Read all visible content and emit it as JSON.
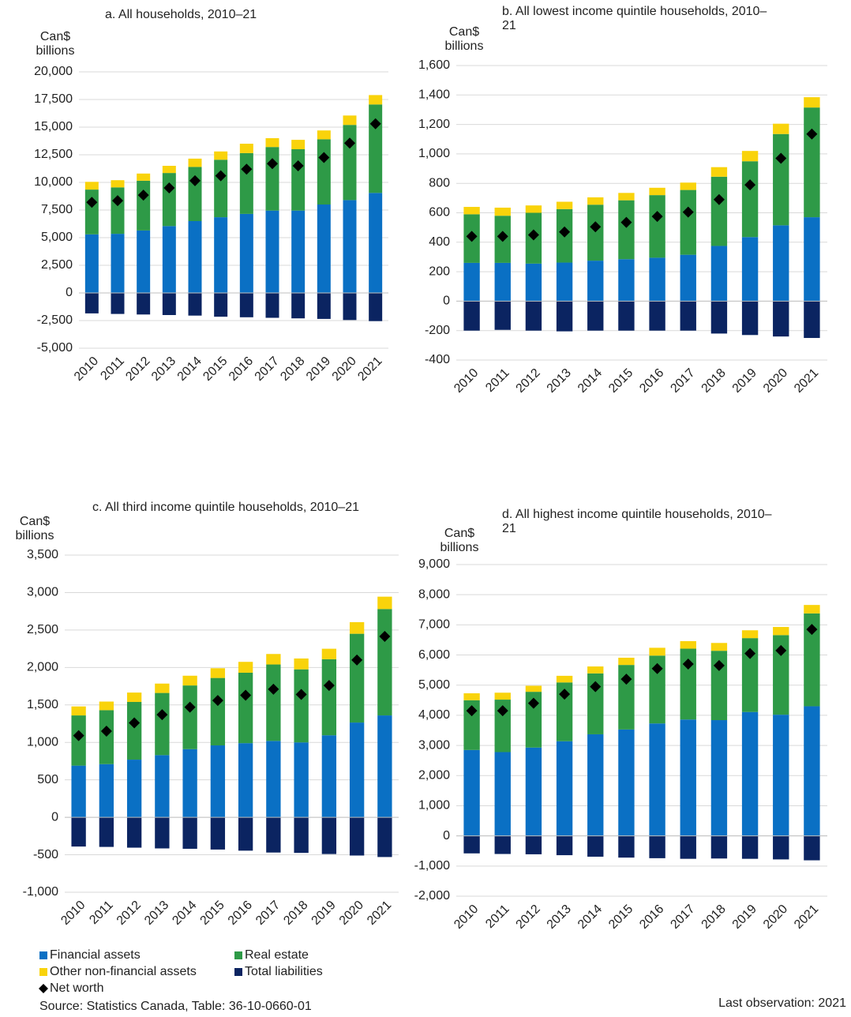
{
  "chart_data": [
    {
      "type": "bar",
      "title": "a. All households, 2010–21",
      "y_label": "Can$ billions",
      "categories": [
        "2010",
        "2011",
        "2012",
        "2013",
        "2014",
        "2015",
        "2016",
        "2017",
        "2018",
        "2019",
        "2020",
        "2021"
      ],
      "ylim": [
        -5000,
        20000
      ],
      "yticks": [
        {
          "value": -5000,
          "label": "-5,000"
        },
        {
          "value": -2500,
          "label": "-2,500"
        },
        0,
        {
          "value": 2500,
          "label": "2,500"
        },
        {
          "value": 5000,
          "label": "5,000"
        },
        {
          "value": 7500,
          "label": "7,500"
        },
        {
          "value": 10000,
          "label": "10,000"
        },
        {
          "value": 12500,
          "label": "12,500"
        },
        {
          "value": 15000,
          "label": "15,000"
        },
        {
          "value": 17500,
          "label": "17,500"
        },
        {
          "value": 20000,
          "label": "20,000"
        }
      ],
      "grid": true,
      "series": [
        {
          "name": "Financial assets",
          "color": "#0a70c4",
          "values": [
            5300,
            5350,
            5650,
            6050,
            6500,
            6850,
            7150,
            7450,
            7450,
            8000,
            8400,
            9050
          ]
        },
        {
          "name": "Real estate",
          "color": "#2e9a47",
          "values": [
            4050,
            4200,
            4500,
            4800,
            4900,
            5200,
            5500,
            5750,
            5550,
            5900,
            6800,
            8000
          ]
        },
        {
          "name": "Other non-financial assets",
          "color": "#f9d30b",
          "values": [
            700,
            650,
            650,
            650,
            750,
            750,
            850,
            800,
            850,
            800,
            850,
            850
          ]
        },
        {
          "name": "Total liabilities",
          "color": "#0b2461",
          "values": [
            -1850,
            -1900,
            -1950,
            -2000,
            -2050,
            -2150,
            -2200,
            -2250,
            -2300,
            -2350,
            -2450,
            -2550
          ]
        },
        {
          "name": "Net worth",
          "color": "#000000",
          "marker": "diamond",
          "values": [
            8200,
            8350,
            8850,
            9500,
            10150,
            10600,
            11200,
            11700,
            11500,
            12250,
            13550,
            15300
          ]
        }
      ]
    },
    {
      "type": "bar",
      "title": "b. All lowest income quintile households, 2010–21",
      "y_label": "Can$ billions",
      "categories": [
        "2010",
        "2011",
        "2012",
        "2013",
        "2014",
        "2015",
        "2016",
        "2017",
        "2018",
        "2019",
        "2020",
        "2021"
      ],
      "ylim": [
        -400,
        1600
      ],
      "yticks": [
        -400,
        -200,
        0,
        200,
        400,
        600,
        800,
        {
          "value": 1000,
          "label": "1,000"
        },
        {
          "value": 1200,
          "label": "1,200"
        },
        {
          "value": 1400,
          "label": "1,400"
        },
        {
          "value": 1600,
          "label": "1,600"
        }
      ],
      "grid": true,
      "series": [
        {
          "values": [
            260,
            260,
            255,
            262,
            275,
            285,
            295,
            315,
            375,
            435,
            515,
            570
          ]
        },
        {
          "values": [
            330,
            320,
            345,
            363,
            380,
            400,
            425,
            440,
            470,
            515,
            620,
            745
          ]
        },
        {
          "values": [
            50,
            55,
            50,
            50,
            50,
            50,
            50,
            50,
            65,
            70,
            70,
            70
          ]
        },
        {
          "values": [
            -200,
            -195,
            -200,
            -205,
            -200,
            -200,
            -200,
            -200,
            -220,
            -230,
            -240,
            -250
          ]
        },
        {
          "values": [
            440,
            440,
            450,
            470,
            505,
            535,
            575,
            605,
            690,
            790,
            970,
            1135
          ]
        }
      ]
    },
    {
      "type": "bar",
      "title": "c. All third income quintile households, 2010–21",
      "y_label": "Can$ billions",
      "categories": [
        "2010",
        "2011",
        "2012",
        "2013",
        "2014",
        "2015",
        "2016",
        "2017",
        "2018",
        "2019",
        "2020",
        "2021"
      ],
      "ylim": [
        -1000,
        3500
      ],
      "yticks": [
        {
          "value": -1000,
          "label": "-1,000"
        },
        -500,
        0,
        500,
        {
          "value": 1000,
          "label": "1,000"
        },
        {
          "value": 1500,
          "label": "1,500"
        },
        {
          "value": 2000,
          "label": "2,000"
        },
        {
          "value": 2500,
          "label": "2,500"
        },
        {
          "value": 3000,
          "label": "3,000"
        },
        {
          "value": 3500,
          "label": "3,500"
        }
      ],
      "grid": true,
      "series": [
        {
          "values": [
            690,
            710,
            770,
            830,
            910,
            960,
            990,
            1020,
            1000,
            1095,
            1265,
            1360
          ]
        },
        {
          "values": [
            670,
            720,
            770,
            830,
            850,
            900,
            940,
            1020,
            975,
            1015,
            1185,
            1420
          ]
        },
        {
          "values": [
            120,
            115,
            125,
            125,
            130,
            130,
            145,
            140,
            145,
            140,
            155,
            165
          ]
        },
        {
          "values": [
            -390,
            -395,
            -405,
            -415,
            -420,
            -430,
            -445,
            -470,
            -475,
            -490,
            -510,
            -530
          ]
        },
        {
          "values": [
            1090,
            1150,
            1260,
            1370,
            1470,
            1560,
            1630,
            1710,
            1640,
            1760,
            2100,
            2415
          ]
        }
      ]
    },
    {
      "type": "bar",
      "title": "d. All highest income quintile households, 2010–21",
      "y_label": "Can$ billions",
      "categories": [
        "2010",
        "2011",
        "2012",
        "2013",
        "2014",
        "2015",
        "2016",
        "2017",
        "2018",
        "2019",
        "2020",
        "2021"
      ],
      "ylim": [
        -2000,
        9000
      ],
      "yticks": [
        {
          "value": -2000,
          "label": "-2,000"
        },
        {
          "value": -1000,
          "label": "-1,000"
        },
        0,
        {
          "value": 1000,
          "label": "1,000"
        },
        {
          "value": 2000,
          "label": "2,000"
        },
        {
          "value": 3000,
          "label": "3,000"
        },
        {
          "value": 4000,
          "label": "4,000"
        },
        {
          "value": 5000,
          "label": "5,000"
        },
        {
          "value": 6000,
          "label": "6,000"
        },
        {
          "value": 7000,
          "label": "7,000"
        },
        {
          "value": 8000,
          "label": "8,000"
        },
        {
          "value": 9000,
          "label": "9,000"
        }
      ],
      "grid": true,
      "series": [
        {
          "values": [
            2850,
            2780,
            2930,
            3140,
            3370,
            3530,
            3730,
            3860,
            3840,
            4110,
            4020,
            4300
          ]
        },
        {
          "values": [
            1650,
            1740,
            1850,
            1950,
            2020,
            2140,
            2250,
            2350,
            2300,
            2450,
            2640,
            3080
          ]
        },
        {
          "values": [
            230,
            230,
            200,
            220,
            230,
            240,
            260,
            250,
            260,
            260,
            270,
            280
          ]
        },
        {
          "values": [
            -580,
            -600,
            -610,
            -640,
            -690,
            -720,
            -740,
            -760,
            -750,
            -760,
            -780,
            -810
          ]
        },
        {
          "values": [
            4150,
            4150,
            4400,
            4700,
            4950,
            5200,
            5550,
            5700,
            5650,
            6050,
            6150,
            6850
          ]
        }
      ]
    }
  ],
  "source": "Source: Statistics Canada, Table: 36-10-0660-01",
  "note": "Last observation: 2021"
}
